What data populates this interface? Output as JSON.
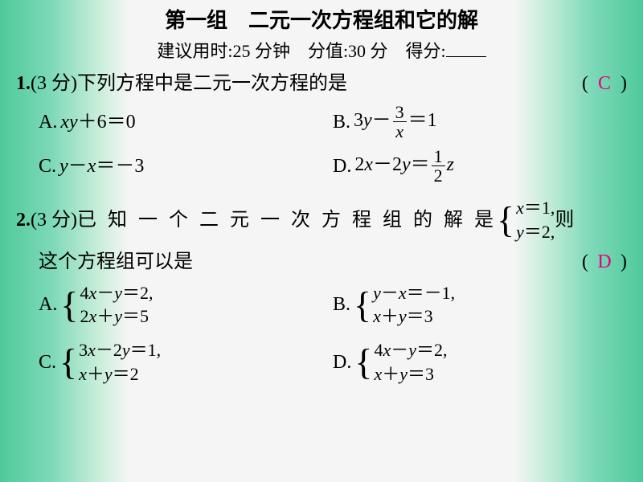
{
  "title": "第一组　二元一次方程组和它的解",
  "subtitle_prefix": "建议用时:25 分钟　分值:30 分　得分:",
  "answer_color": "#e4007f",
  "q1": {
    "num": "1.",
    "points": "(3 分)",
    "text": "下列方程中是二元一次方程的是",
    "paren_l": "(",
    "paren_r": ")",
    "answer": "C",
    "options": {
      "A": {
        "label": "A.",
        "expr_prefix": "xy",
        "expr_mid": "＋6＝0"
      },
      "B": {
        "label": "B.",
        "expr_prefix": "3",
        "y": "y",
        "minus": "－",
        "frac_num": "3",
        "frac_den": "x",
        "eq": "＝1"
      },
      "C": {
        "label": "C.",
        "y": "y",
        "minus": "－",
        "x": "x",
        "eq": "＝－3"
      },
      "D": {
        "label": "D.",
        "prefix": "2",
        "x": "x",
        "minus": "－2",
        "y": "y",
        "eq": "＝",
        "frac_num": "1",
        "frac_den": "2",
        "z": "z"
      }
    }
  },
  "q2": {
    "num": "2.",
    "points": "(3 分)",
    "text1": "已 知 一 个 二 元 一 次 方 程 组 的 解 是",
    "sys_sol": {
      "l1_x": "x",
      "l1_rest": "＝1,",
      "l2_y": "y",
      "l2_rest": "＝2,"
    },
    "text_after": "则",
    "text2": "这个方程组可以是",
    "paren_l": "(",
    "paren_r": ")",
    "answer": "D",
    "options": {
      "A": {
        "label": "A.",
        "l1": "4x－y＝2,",
        "l2": "2x＋y＝5"
      },
      "B": {
        "label": "B.",
        "l1": "y－x＝－1,",
        "l2": "x＋y＝3"
      },
      "C": {
        "label": "C.",
        "l1": "3x－2y＝1,",
        "l2": "x＋y＝2"
      },
      "D": {
        "label": "D.",
        "l1": "4x－y＝2,",
        "l2": "x＋y＝3"
      }
    }
  }
}
